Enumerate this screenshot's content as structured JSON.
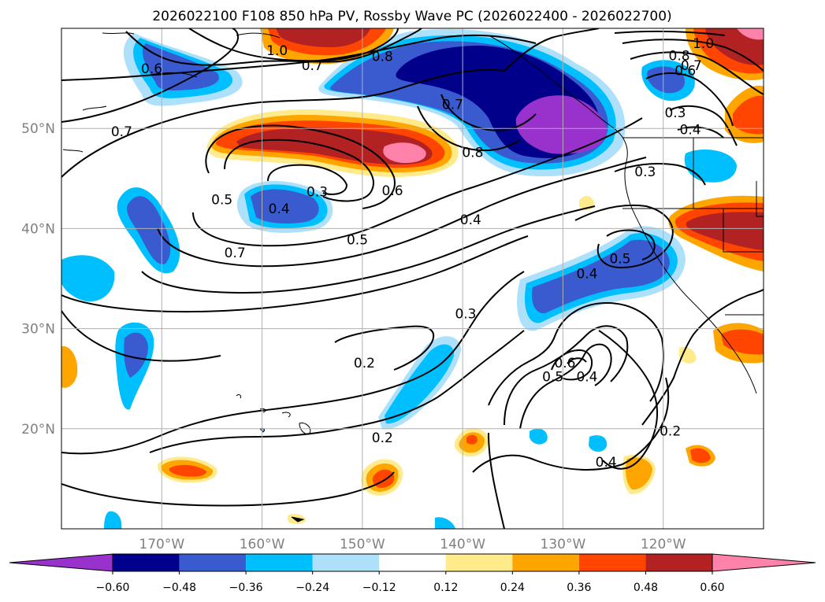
{
  "title": "2026022100 F108 850 hPa PV, Rossby Wave PC (2026022400 - 2026022700)",
  "map": {
    "lon_range": [
      -180,
      -110
    ],
    "lat_range": [
      10,
      60
    ],
    "grid": true,
    "lon_ticks": [
      {
        "value": -170,
        "label": "170°W"
      },
      {
        "value": -160,
        "label": "160°W"
      },
      {
        "value": -150,
        "label": "150°W"
      },
      {
        "value": -140,
        "label": "140°W"
      },
      {
        "value": -130,
        "label": "130°W"
      },
      {
        "value": -120,
        "label": "120°W"
      }
    ],
    "lat_ticks": [
      {
        "value": 20,
        "label": "20°N"
      },
      {
        "value": 30,
        "label": "30°N"
      },
      {
        "value": 40,
        "label": "40°N"
      },
      {
        "value": 50,
        "label": "50°N"
      }
    ],
    "tick_label_color": "#808080"
  },
  "colorbar": {
    "levels": [
      -0.6,
      -0.48,
      -0.36,
      -0.24,
      -0.12,
      0.12,
      0.24,
      0.36,
      0.48,
      0.6
    ],
    "tick_labels": [
      "−0.60",
      "−0.48",
      "−0.36",
      "−0.24",
      "−0.12",
      "0.12",
      "0.24",
      "0.36",
      "0.48",
      "0.60"
    ],
    "colors": [
      "#9932cc",
      "#00008b",
      "#3a5bd0",
      "#00bfff",
      "#ade0fa",
      "#ffffff",
      "#ffeb8c",
      "#ffa500",
      "#ff4500",
      "#b22222",
      "#ff82ab"
    ]
  },
  "contour_labels": [
    {
      "text": "0.7",
      "lon": -174,
      "lat": 49.7
    },
    {
      "text": "0.6",
      "lon": -171,
      "lat": 56.0
    },
    {
      "text": "0.7",
      "lon": -155,
      "lat": 56.3
    },
    {
      "text": "0.8",
      "lon": -148,
      "lat": 57.2
    },
    {
      "text": "1.0",
      "lon": -158.5,
      "lat": 57.8
    },
    {
      "text": "0.7",
      "lon": -141,
      "lat": 52.4
    },
    {
      "text": "0.8",
      "lon": -139,
      "lat": 47.6
    },
    {
      "text": "0.6",
      "lon": -147,
      "lat": 43.8
    },
    {
      "text": "0.5",
      "lon": -164,
      "lat": 42.9
    },
    {
      "text": "0.3",
      "lon": -154.5,
      "lat": 43.7
    },
    {
      "text": "0.4",
      "lon": -158.3,
      "lat": 42.0
    },
    {
      "text": "0.4",
      "lon": -139.2,
      "lat": 40.9
    },
    {
      "text": "0.5",
      "lon": -150.5,
      "lat": 38.9
    },
    {
      "text": "0.7",
      "lon": -162.7,
      "lat": 37.6
    },
    {
      "text": "0.3",
      "lon": -139.7,
      "lat": 31.5
    },
    {
      "text": "0.2",
      "lon": -149.8,
      "lat": 26.6
    },
    {
      "text": "0.2",
      "lon": -148,
      "lat": 19.1
    },
    {
      "text": "0.6",
      "lon": -129.8,
      "lat": 26.6
    },
    {
      "text": "0.5",
      "lon": -131,
      "lat": 25.2
    },
    {
      "text": "0.4",
      "lon": -127.6,
      "lat": 25.2
    },
    {
      "text": "0.4",
      "lon": -125.7,
      "lat": 16.7
    },
    {
      "text": "0.2",
      "lon": -119.3,
      "lat": 19.8
    },
    {
      "text": "0.5",
      "lon": -124.3,
      "lat": 37.0
    },
    {
      "text": "0.4",
      "lon": -127.6,
      "lat": 35.5
    },
    {
      "text": "0.3",
      "lon": -121.8,
      "lat": 45.7
    },
    {
      "text": "0.3",
      "lon": -118.8,
      "lat": 51.6
    },
    {
      "text": "0.4",
      "lon": -117.3,
      "lat": 49.9
    },
    {
      "text": "0.6",
      "lon": -117.8,
      "lat": 55.8
    },
    {
      "text": "0.7",
      "lon": -117.2,
      "lat": 56.3
    },
    {
      "text": "0.8",
      "lon": -118.4,
      "lat": 57.3
    },
    {
      "text": "1.0",
      "lon": -116,
      "lat": 58.5
    }
  ]
}
